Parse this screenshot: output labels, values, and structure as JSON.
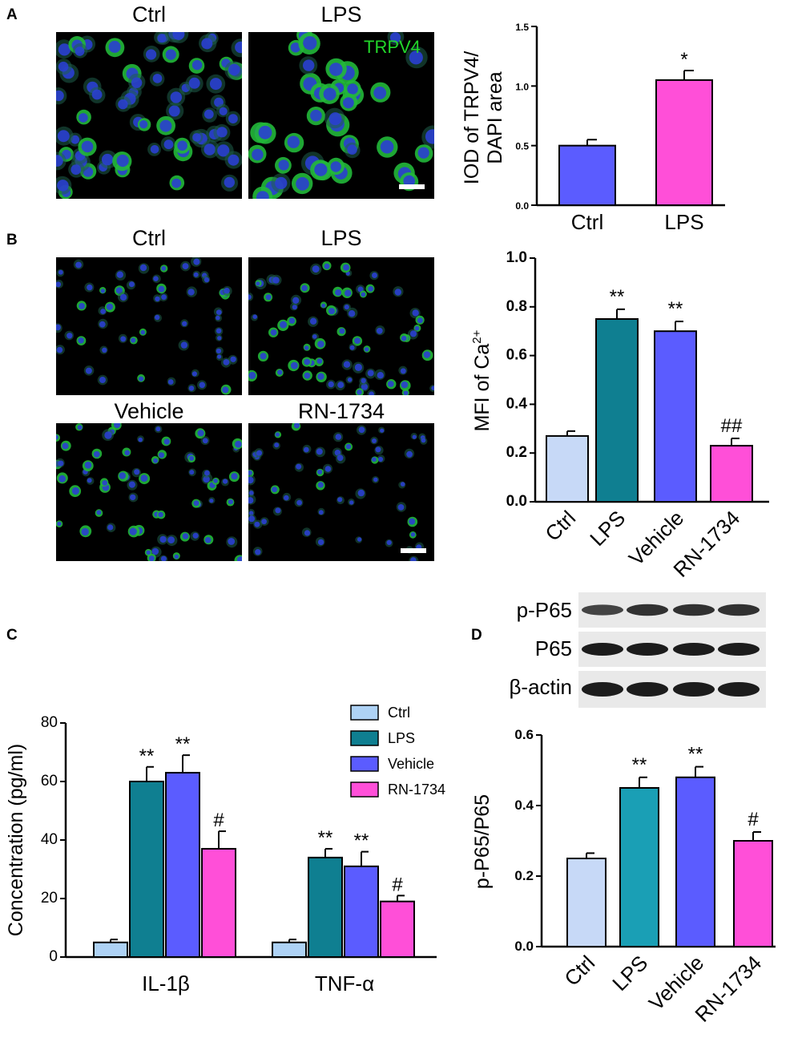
{
  "panels": {
    "A": {
      "letter": "A",
      "images": [
        {
          "label": "Ctrl"
        },
        {
          "label": "LPS"
        }
      ],
      "stain_label": "TRPV4"
    },
    "B": {
      "letter": "B",
      "images": [
        {
          "label": "Ctrl"
        },
        {
          "label": "LPS"
        },
        {
          "label": "Vehicle"
        },
        {
          "label": "RN-1734"
        }
      ]
    },
    "C": {
      "letter": "C"
    },
    "D": {
      "letter": "D",
      "blot_labels": [
        "p-P65",
        "P65",
        "β-actin"
      ]
    }
  },
  "chart_data": [
    {
      "id": "A",
      "type": "bar",
      "categories": [
        "Ctrl",
        "LPS"
      ],
      "values": [
        0.5,
        1.05
      ],
      "errors": [
        0.05,
        0.08
      ],
      "annotations": [
        "",
        "*"
      ],
      "colors": [
        "#5b5cff",
        "#ff4fd8"
      ],
      "ylabel_lines": [
        "IOD of TRPV4/",
        "DAPI area"
      ],
      "ylim": [
        0,
        1.5
      ],
      "yticks": [
        "0.0",
        "0.5",
        "1.0",
        "1.5"
      ],
      "tick_values": [
        0,
        0.5,
        1.0,
        1.5
      ]
    },
    {
      "id": "B",
      "type": "bar",
      "categories": [
        "Ctrl",
        "LPS",
        "Vehicle",
        "RN-1734"
      ],
      "values": [
        0.27,
        0.75,
        0.7,
        0.23
      ],
      "errors": [
        0.02,
        0.04,
        0.04,
        0.03
      ],
      "annotations": [
        "",
        "**",
        "**",
        "##"
      ],
      "colors": [
        "#c7d9f7",
        "#0f7f91",
        "#5b5cff",
        "#ff4fd8"
      ],
      "ylabel": "MFI of Ca",
      "ylabel_sup": "2+",
      "ylim": [
        0,
        1.0
      ],
      "yticks": [
        "0.0",
        "0.2",
        "0.4",
        "0.6",
        "0.8",
        "1.0"
      ],
      "tick_values": [
        0,
        0.2,
        0.4,
        0.6,
        0.8,
        1.0
      ]
    },
    {
      "id": "C",
      "type": "bar",
      "categories": [
        "IL-1β",
        "TNF-α"
      ],
      "series": [
        {
          "name": "Ctrl",
          "values": [
            5,
            5
          ],
          "errors": [
            1,
            1
          ],
          "color": "#aed2f5",
          "annotations": [
            "",
            ""
          ]
        },
        {
          "name": "LPS",
          "values": [
            60,
            34
          ],
          "errors": [
            5,
            3
          ],
          "color": "#0f7f91",
          "annotations": [
            "**",
            "**"
          ]
        },
        {
          "name": "Vehicle",
          "values": [
            63,
            31
          ],
          "errors": [
            6,
            5
          ],
          "color": "#5b5cff",
          "annotations": [
            "**",
            "**"
          ]
        },
        {
          "name": "RN-1734",
          "values": [
            37,
            19
          ],
          "errors": [
            6,
            2
          ],
          "color": "#ff4fd8",
          "annotations": [
            "#",
            "#"
          ]
        }
      ],
      "ylabel": "Concentration (pg/ml)",
      "ylim": [
        0,
        80
      ],
      "yticks": [
        "0",
        "20",
        "40",
        "60",
        "80"
      ],
      "tick_values": [
        0,
        20,
        40,
        60,
        80
      ],
      "legend_position": "top-right"
    },
    {
      "id": "D",
      "type": "bar",
      "categories": [
        "Ctrl",
        "LPS",
        "Vehicle",
        "RN-1734"
      ],
      "values": [
        0.25,
        0.45,
        0.48,
        0.3
      ],
      "errors": [
        0.015,
        0.03,
        0.03,
        0.025
      ],
      "annotations": [
        "",
        "**",
        "**",
        "#"
      ],
      "colors": [
        "#c7d9f7",
        "#1a9fb5",
        "#5b5cff",
        "#ff4fd8"
      ],
      "ylabel": "p-P65/P65",
      "ylim": [
        0,
        0.6
      ],
      "yticks": [
        "0.0",
        "0.2",
        "0.4",
        "0.6"
      ],
      "tick_values": [
        0,
        0.2,
        0.4,
        0.6
      ]
    }
  ]
}
